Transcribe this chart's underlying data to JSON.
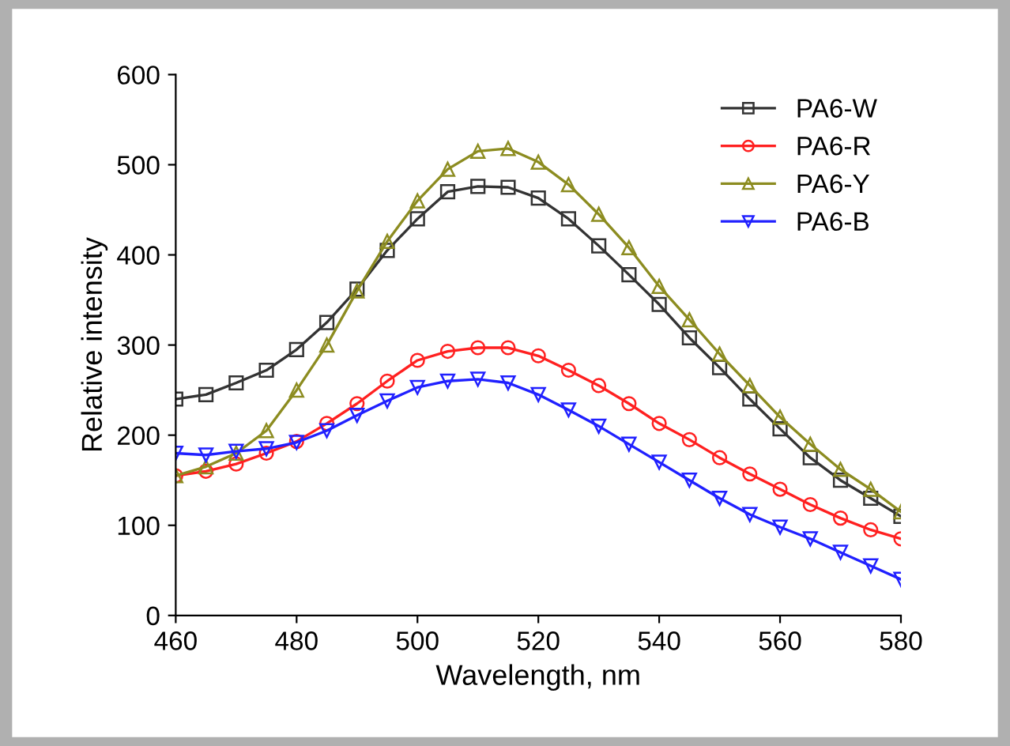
{
  "chart_data": {
    "type": "line",
    "xlabel": "Wavelength, nm",
    "ylabel": "Relative intensity",
    "x": [
      460,
      465,
      470,
      475,
      480,
      485,
      490,
      495,
      500,
      505,
      510,
      515,
      520,
      525,
      530,
      535,
      540,
      545,
      550,
      555,
      560,
      565,
      570,
      575,
      580
    ],
    "series": [
      {
        "name": "PA6-W",
        "color": "#333333",
        "marker": "square",
        "values": [
          240,
          245,
          258,
          272,
          295,
          325,
          362,
          405,
          440,
          470,
          476,
          475,
          463,
          440,
          410,
          378,
          345,
          308,
          275,
          240,
          207,
          175,
          150,
          130,
          110
        ]
      },
      {
        "name": "PA6-R",
        "color": "#ff2020",
        "marker": "circle",
        "values": [
          155,
          160,
          168,
          180,
          193,
          213,
          235,
          260,
          283,
          293,
          297,
          297,
          288,
          272,
          255,
          235,
          213,
          195,
          175,
          157,
          140,
          123,
          108,
          95,
          85
        ]
      },
      {
        "name": "PA6-Y",
        "color": "#8c8c20",
        "marker": "triangle",
        "values": [
          155,
          165,
          180,
          205,
          250,
          300,
          360,
          415,
          460,
          495,
          515,
          518,
          503,
          478,
          445,
          408,
          365,
          328,
          290,
          255,
          220,
          190,
          162,
          140,
          115
        ]
      },
      {
        "name": "PA6-B",
        "color": "#2020ff",
        "marker": "triangle_down",
        "values": [
          180,
          178,
          182,
          185,
          192,
          205,
          222,
          238,
          253,
          260,
          262,
          258,
          245,
          228,
          210,
          190,
          170,
          150,
          130,
          112,
          98,
          85,
          70,
          55,
          40
        ]
      }
    ],
    "xlim": [
      460,
      580
    ],
    "ylim": [
      0,
      600
    ],
    "xticks": [
      460,
      480,
      500,
      520,
      540,
      560,
      580
    ],
    "yticks": [
      0,
      100,
      200,
      300,
      400,
      500,
      600
    ],
    "grid": false,
    "legend": "top right",
    "line_style": "solid"
  }
}
